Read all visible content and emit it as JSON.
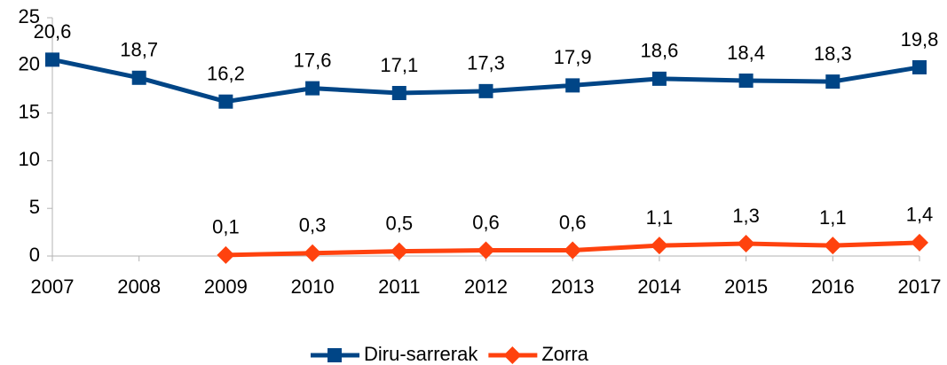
{
  "chart_data": {
    "type": "line",
    "categories": [
      "2007",
      "2008",
      "2009",
      "2010",
      "2011",
      "2012",
      "2013",
      "2014",
      "2015",
      "2016",
      "2017"
    ],
    "series": [
      {
        "name": "Diru-sarrerak",
        "color": "#004586",
        "marker": "square",
        "values": [
          20.6,
          18.7,
          16.2,
          17.6,
          17.1,
          17.3,
          17.9,
          18.6,
          18.4,
          18.3,
          19.8
        ],
        "value_labels": [
          "20,6",
          "18,7",
          "16,2",
          "17,6",
          "17,1",
          "17,3",
          "17,9",
          "18,6",
          "18,4",
          "18,3",
          "19,8"
        ]
      },
      {
        "name": "Zorra",
        "color": "#ff420e",
        "marker": "diamond",
        "values": [
          null,
          null,
          0.1,
          0.3,
          0.5,
          0.6,
          0.6,
          1.1,
          1.3,
          1.1,
          1.4
        ],
        "value_labels": [
          null,
          null,
          "0,1",
          "0,3",
          "0,5",
          "0,6",
          "0,6",
          "1,1",
          "1,3",
          "1,1",
          "1,4"
        ]
      }
    ],
    "ylim": [
      0,
      25
    ],
    "yticks": [
      0,
      5,
      10,
      15,
      20,
      25
    ],
    "grid": false,
    "legend": "bottom"
  }
}
